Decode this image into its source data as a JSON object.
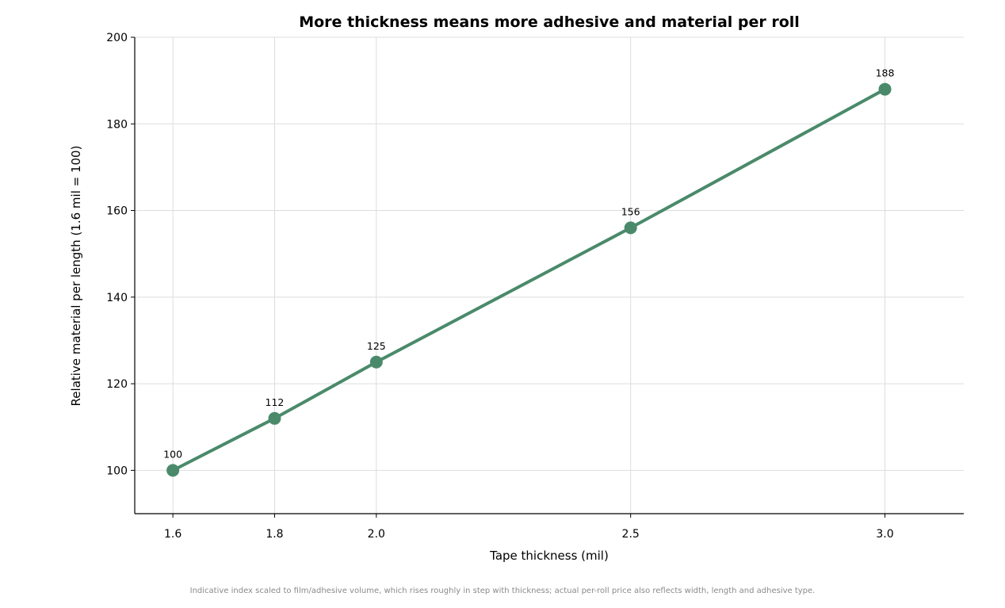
{
  "chart_data": {
    "type": "line",
    "title": "More thickness means more adhesive and material per roll",
    "xlabel": "Tape thickness (mil)",
    "ylabel": "Relative material per length (1.6 mil = 100)",
    "x": [
      1.6,
      1.8,
      2.0,
      2.5,
      3.0
    ],
    "x_tick_labels": [
      "1.6",
      "1.8",
      "2.0",
      "2.5",
      "3.0"
    ],
    "y": [
      100,
      112,
      125,
      156,
      188
    ],
    "data_labels": [
      "100",
      "112",
      "125",
      "156",
      "188"
    ],
    "xlim": [
      1.525,
      3.155
    ],
    "ylim": [
      90,
      200
    ],
    "y_ticks": [
      100,
      120,
      140,
      160,
      180,
      200
    ],
    "y_tick_labels": [
      "100",
      "120",
      "140",
      "160",
      "180",
      "200"
    ],
    "grid": true,
    "line_color": "#4a8a6a",
    "footnote": "Indicative index scaled to film/adhesive volume, which rises roughly in step with thickness; actual per-roll price also reflects width, length and adhesive type."
  }
}
